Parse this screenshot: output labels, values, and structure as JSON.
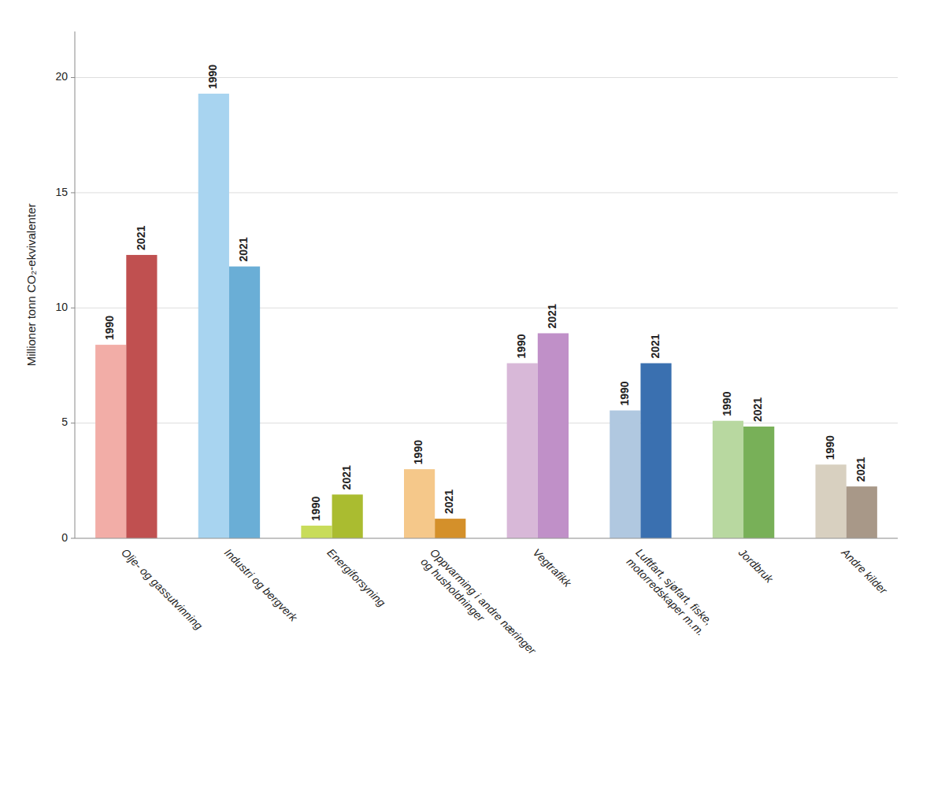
{
  "chart_data": {
    "type": "bar",
    "ylabel": "Millioner tonn CO₂-ekvivalenter",
    "categories": [
      "Olje- og gassutvinning",
      "Industri og bergverk",
      "Energiforsyning",
      "Oppvarming i andre næringer\nog husholdninger",
      "Vegtrafikk",
      "Luftfart, sjøfart, fiske,\nmotorredskaper m.m.",
      "Jordbruk",
      "Andre kilder"
    ],
    "series": [
      {
        "name": "1990",
        "values": [
          8.4,
          19.3,
          0.55,
          3.0,
          7.6,
          5.55,
          5.1,
          3.2
        ],
        "colors": [
          "#F2ADA7",
          "#A8D4F0",
          "#C8DC5A",
          "#F5C88A",
          "#D8B8D8",
          "#B0C8E0",
          "#B8D8A0",
          "#D8D0C0"
        ]
      },
      {
        "name": "2021",
        "values": [
          12.3,
          11.8,
          1.9,
          0.85,
          8.9,
          7.6,
          4.85,
          2.25
        ],
        "colors": [
          "#C05050",
          "#6AAED6",
          "#AABC30",
          "#D4902A",
          "#C090C8",
          "#3A70B0",
          "#78B058",
          "#A89888"
        ]
      }
    ],
    "ylim": [
      0,
      22
    ],
    "yticks": [
      0,
      5,
      10,
      15,
      20
    ],
    "grid": true
  }
}
